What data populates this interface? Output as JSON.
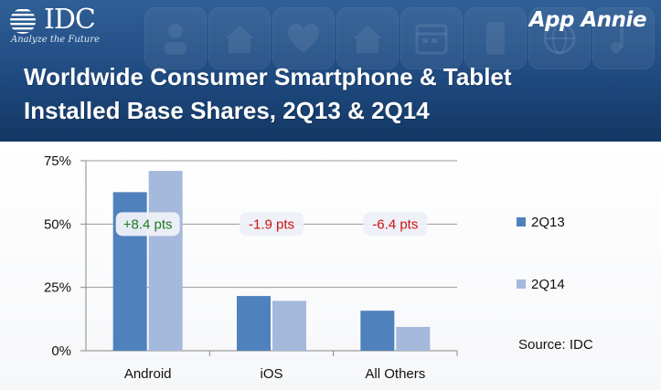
{
  "header": {
    "idc_logo_text": "IDC",
    "idc_tagline": "Analyze the Future",
    "app_annie_logo": "App Annie",
    "title_line1": "Worldwide Consumer Smartphone & Tablet",
    "title_line2": "Installed Base Shares, 2Q13 & 2Q14"
  },
  "source": "Source: IDC",
  "chart_data": {
    "type": "bar",
    "title": "Worldwide Consumer Smartphone & Tablet Installed Base Shares, 2Q13 & 2Q14",
    "categories": [
      "Android",
      "iOS",
      "All Others"
    ],
    "series": [
      {
        "name": "2Q13",
        "values": [
          62.6,
          21.6,
          15.8
        ]
      },
      {
        "name": "2Q14",
        "values": [
          71.0,
          19.7,
          9.4
        ]
      }
    ],
    "annotations": [
      "+8.4 pts",
      "-1.9 pts",
      "-6.4 pts"
    ],
    "annotation_colors": [
      "#1e7a1e",
      "#cc1111",
      "#cc1111"
    ],
    "yticks": [
      "0%",
      "25%",
      "50%",
      "75%"
    ],
    "ytick_values": [
      0,
      25,
      50,
      75
    ],
    "ylim": [
      0,
      75
    ],
    "xlabel": "",
    "ylabel": "",
    "legend_position": "right",
    "grid": true,
    "colors": [
      "#4f81bd",
      "#a5b9dc"
    ]
  }
}
